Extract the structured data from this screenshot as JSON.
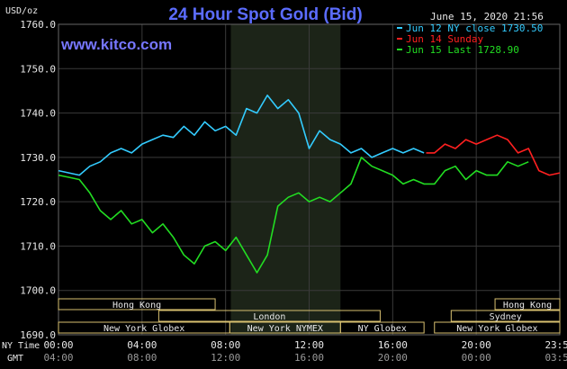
{
  "chart_data": {
    "type": "line",
    "title": "24 Hour Spot Gold (Bid)",
    "ylabel": "USD/oz",
    "date_label": "June 15, 2020 21:56",
    "watermark": "www.kitco.com",
    "ylim": [
      1690,
      1760
    ],
    "ytick_labels": [
      "1760.0",
      "1750.0",
      "1740.0",
      "1730.0",
      "1720.0",
      "1710.0",
      "1700.0",
      "1690.0"
    ],
    "yticks": [
      1760,
      1750,
      1740,
      1730,
      1720,
      1710,
      1700,
      1690
    ],
    "x_axis_top_label": "NY Time",
    "x_axis_bottom_label": "GMT",
    "xticks_hours": [
      0,
      4,
      8,
      12,
      16,
      20,
      24
    ],
    "ny_tick_labels": [
      "00:00",
      "04:00",
      "08:00",
      "12:00",
      "16:00",
      "20:00",
      "23:59"
    ],
    "gmt_tick_labels": [
      "04:00",
      "08:00",
      "12:00",
      "16:00",
      "20:00",
      "00:00",
      "03:59"
    ],
    "shaded_hours": [
      8.25,
      13.5
    ],
    "legend_position": "top-right",
    "series": [
      {
        "name": "Jun 12 NY close 1730.50",
        "color": "#33ccff",
        "points": [
          [
            0,
            1727
          ],
          [
            0.5,
            1726.5
          ],
          [
            1,
            1726
          ],
          [
            1.5,
            1728
          ],
          [
            2,
            1729
          ],
          [
            2.5,
            1731
          ],
          [
            3,
            1732
          ],
          [
            3.5,
            1731
          ],
          [
            4,
            1733
          ],
          [
            4.5,
            1734
          ],
          [
            5,
            1735
          ],
          [
            5.5,
            1734.5
          ],
          [
            6,
            1737
          ],
          [
            6.5,
            1735
          ],
          [
            7,
            1738
          ],
          [
            7.5,
            1736
          ],
          [
            8,
            1737
          ],
          [
            8.5,
            1735
          ],
          [
            9,
            1741
          ],
          [
            9.5,
            1740
          ],
          [
            10,
            1744
          ],
          [
            10.5,
            1741
          ],
          [
            11,
            1743
          ],
          [
            11.5,
            1740
          ],
          [
            12,
            1732
          ],
          [
            12.5,
            1736
          ],
          [
            13,
            1734
          ],
          [
            13.5,
            1733
          ],
          [
            14,
            1731
          ],
          [
            14.5,
            1732
          ],
          [
            15,
            1730
          ],
          [
            15.5,
            1731
          ],
          [
            16,
            1732
          ],
          [
            16.5,
            1731
          ],
          [
            17,
            1732
          ],
          [
            17.5,
            1731
          ]
        ]
      },
      {
        "name": "Jun 14 Sunday",
        "color": "#ff2020",
        "points": [
          [
            17.6,
            1731
          ],
          [
            18,
            1731
          ],
          [
            18.5,
            1733
          ],
          [
            19,
            1732
          ],
          [
            19.5,
            1734
          ],
          [
            20,
            1733
          ],
          [
            20.5,
            1734
          ],
          [
            21,
            1735
          ],
          [
            21.5,
            1734
          ],
          [
            22,
            1731
          ],
          [
            22.5,
            1732
          ],
          [
            23,
            1727
          ],
          [
            23.5,
            1726
          ],
          [
            24,
            1726.5
          ]
        ]
      },
      {
        "name": "Jun 15 Last 1728.90",
        "color": "#22dd22",
        "points": [
          [
            0,
            1726
          ],
          [
            0.5,
            1725.5
          ],
          [
            1,
            1725
          ],
          [
            1.5,
            1722
          ],
          [
            2,
            1718
          ],
          [
            2.5,
            1716
          ],
          [
            3,
            1718
          ],
          [
            3.5,
            1715
          ],
          [
            4,
            1716
          ],
          [
            4.5,
            1713
          ],
          [
            5,
            1715
          ],
          [
            5.5,
            1712
          ],
          [
            6,
            1708
          ],
          [
            6.5,
            1706
          ],
          [
            7,
            1710
          ],
          [
            7.5,
            1711
          ],
          [
            8,
            1709
          ],
          [
            8.5,
            1712
          ],
          [
            9,
            1708
          ],
          [
            9.5,
            1704
          ],
          [
            10,
            1708
          ],
          [
            10.5,
            1719
          ],
          [
            11,
            1721
          ],
          [
            11.5,
            1722
          ],
          [
            12,
            1720
          ],
          [
            12.5,
            1721
          ],
          [
            13,
            1720
          ],
          [
            13.5,
            1722
          ],
          [
            14,
            1724
          ],
          [
            14.5,
            1730
          ],
          [
            15,
            1728
          ],
          [
            15.5,
            1727
          ],
          [
            16,
            1726
          ],
          [
            16.5,
            1724
          ],
          [
            17,
            1725
          ],
          [
            17.5,
            1724
          ],
          [
            18,
            1724
          ],
          [
            18.5,
            1727
          ],
          [
            19,
            1728
          ],
          [
            19.5,
            1725
          ],
          [
            20,
            1727
          ],
          [
            20.5,
            1726
          ],
          [
            21,
            1726
          ],
          [
            21.5,
            1729
          ],
          [
            22,
            1728
          ],
          [
            22.5,
            1729
          ]
        ]
      }
    ],
    "sessions": [
      {
        "label": "Hong Kong",
        "start_hour": 0,
        "end_hour": 7.5,
        "row": 0
      },
      {
        "label": "London",
        "start_hour": 4.8,
        "end_hour": 15.4,
        "row": 1
      },
      {
        "label": "New York Globex",
        "start_hour": 0,
        "end_hour": 8.2,
        "row": 2
      },
      {
        "label": "New York NYMEX",
        "start_hour": 8.2,
        "end_hour": 13.5,
        "row": 2
      },
      {
        "label": "NY Globex",
        "start_hour": 13.5,
        "end_hour": 17.5,
        "row": 2
      },
      {
        "label": "Hong Kong",
        "start_hour": 20.9,
        "end_hour": 24,
        "row": 0
      },
      {
        "label": "Sydney",
        "start_hour": 18.8,
        "end_hour": 24,
        "row": 1
      },
      {
        "label": "New York Globex",
        "start_hour": 18.0,
        "end_hour": 24,
        "row": 2
      }
    ],
    "colors": {
      "background": "#000000",
      "grid": "#3a3a3a",
      "text": "#e8e8e8",
      "title": "#5b6cff",
      "watermark": "#7777ff",
      "shade": "#1c2418",
      "session_box": "#d8c070"
    }
  }
}
